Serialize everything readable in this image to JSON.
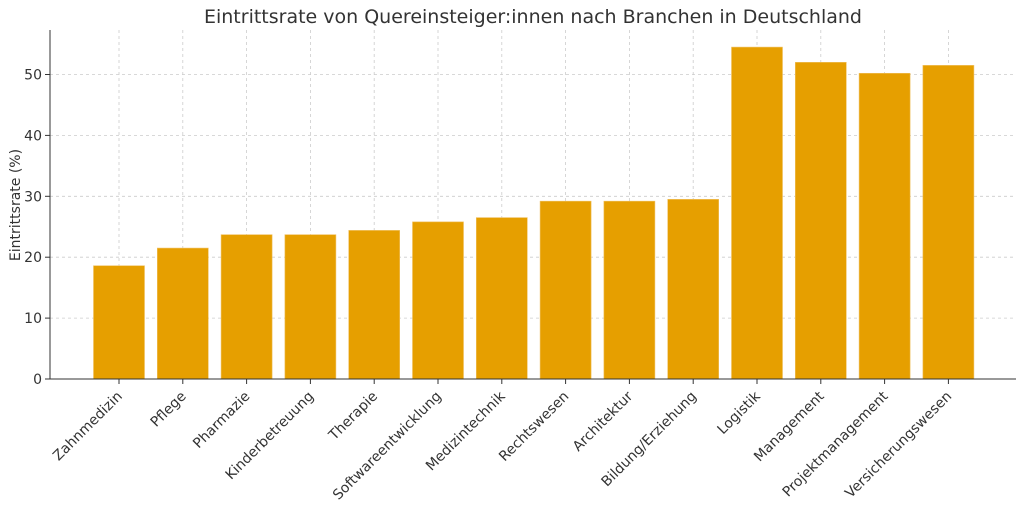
{
  "chart_data": {
    "type": "bar",
    "title": "Eintrittsrate von Quereinsteiger:innen nach Branchen in Deutschland",
    "xlabel": "",
    "ylabel": "Eintrittsrate (%)",
    "ylim": [
      0,
      57
    ],
    "yticks": [
      0,
      10,
      20,
      30,
      40,
      50
    ],
    "grid": true,
    "bar_color": "#E69F00",
    "categories": [
      "Zahnmedizin",
      "Pflege",
      "Pharmazie",
      "Kinderbetreuung",
      "Therapie",
      "Softwareentwicklung",
      "Medizintechnik",
      "Rechtswesen",
      "Architektur",
      "Bildung/Erziehung",
      "Logistik",
      "Management",
      "Projektmanagement",
      "Versicherungswesen"
    ],
    "values": [
      18.6,
      21.5,
      23.7,
      23.7,
      24.4,
      25.8,
      26.5,
      29.2,
      29.2,
      29.5,
      54.5,
      52.0,
      50.2,
      51.5
    ]
  }
}
